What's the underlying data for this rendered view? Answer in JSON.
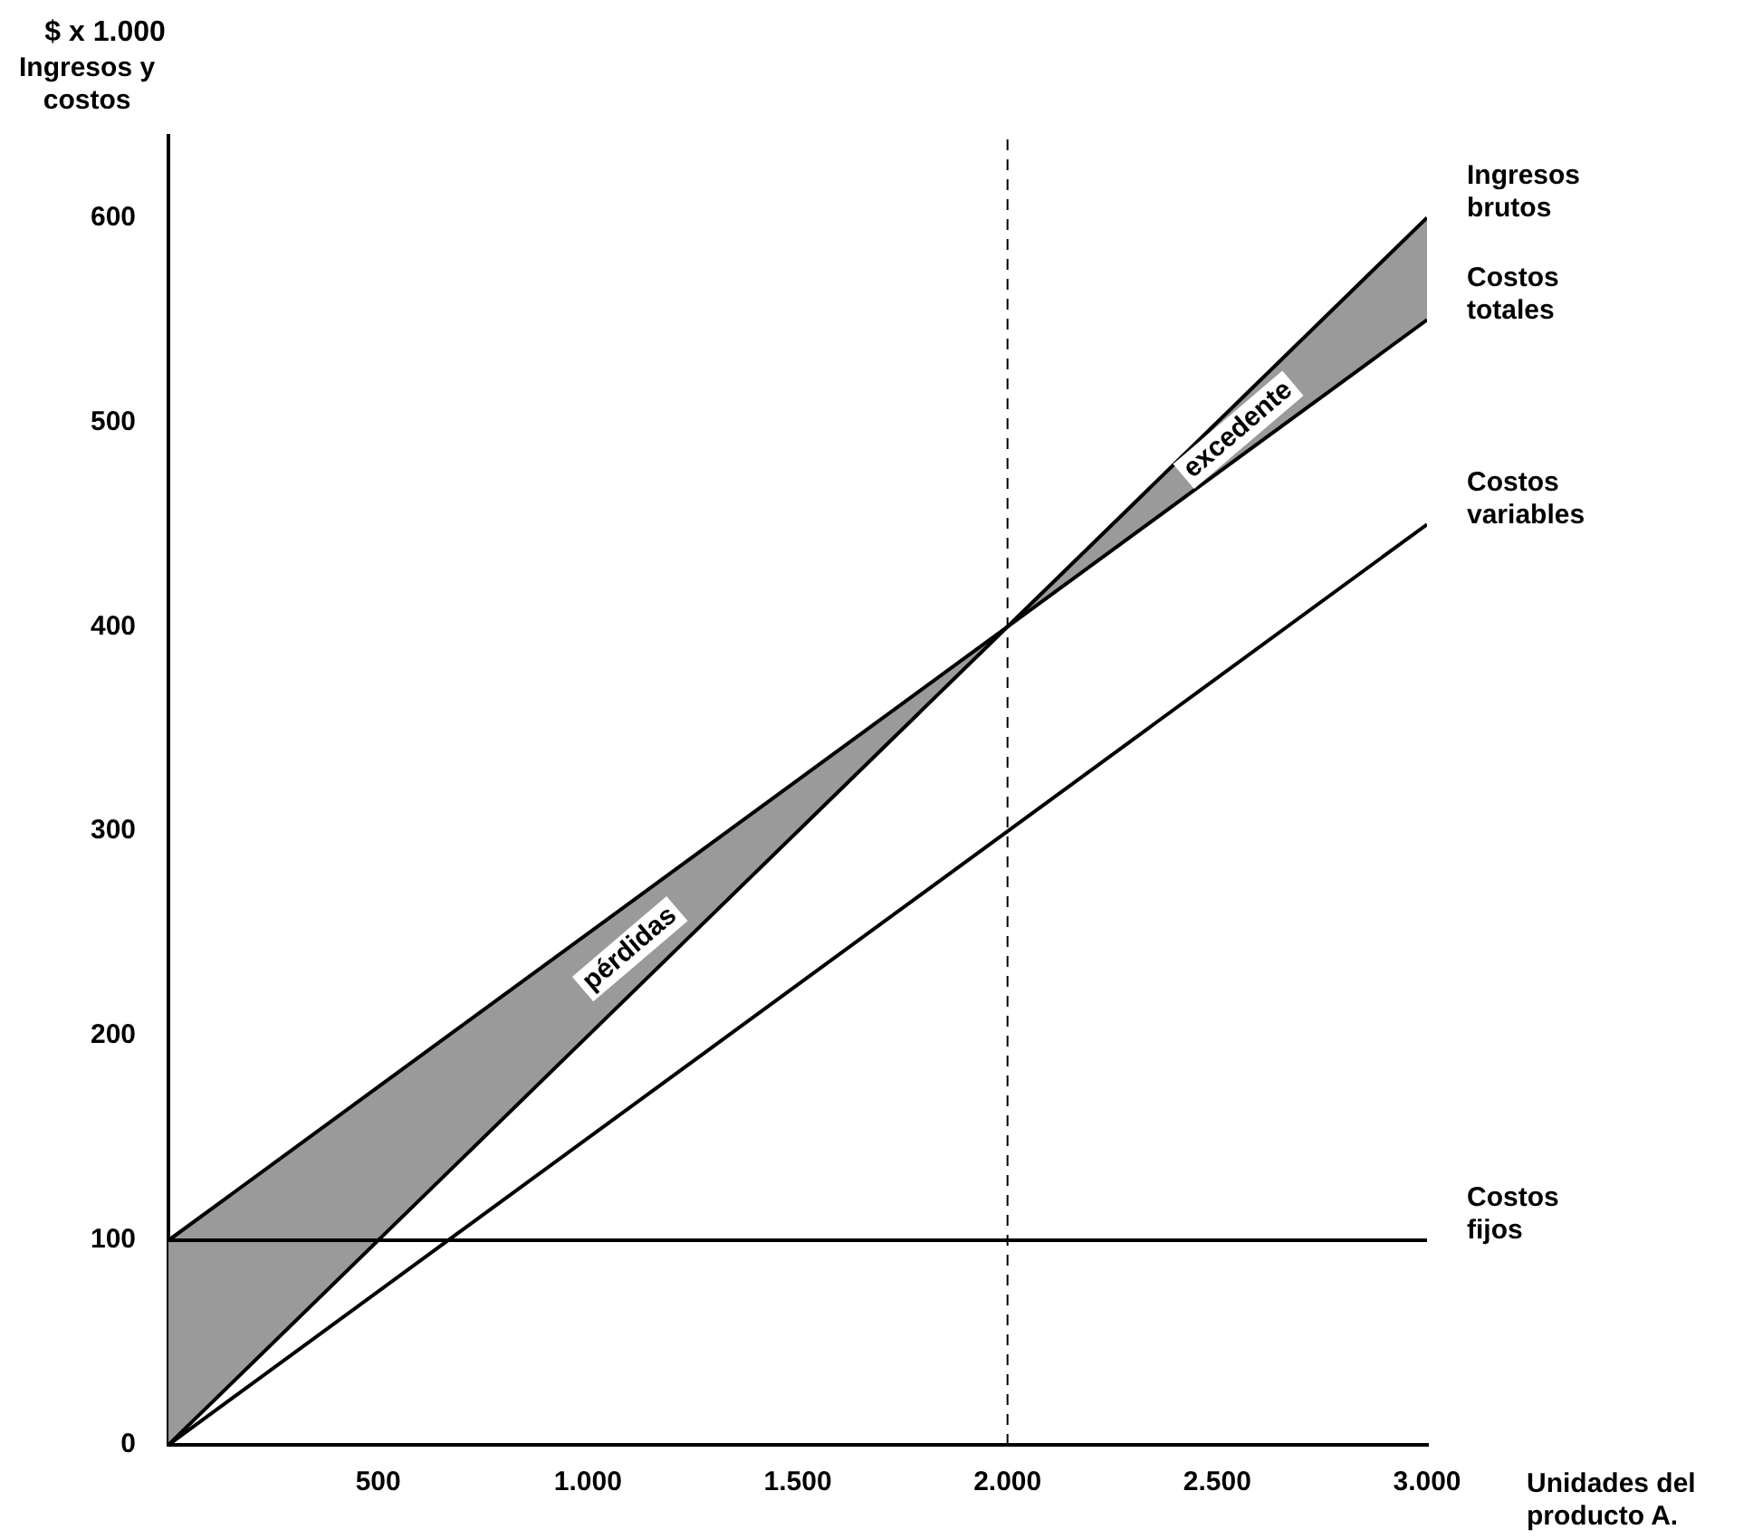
{
  "chart_data": {
    "type": "line",
    "xlabel": "Unidades del producto A.",
    "ylabel": "Ingresos y costos",
    "annotations": [
      "$ x 1.000",
      "pérdidas",
      "excedente"
    ],
    "xlim": [
      0,
      3000
    ],
    "ylim": [
      0,
      640
    ],
    "xticks": [
      {
        "value": 500,
        "label": "500"
      },
      {
        "value": 1000,
        "label": "1.000"
      },
      {
        "value": 1500,
        "label": "1.500"
      },
      {
        "value": 2000,
        "label": "2.000"
      },
      {
        "value": 2500,
        "label": "2.500"
      },
      {
        "value": 3000,
        "label": "3.000"
      }
    ],
    "yticks": [
      0,
      100,
      200,
      300,
      400,
      500,
      600
    ],
    "grid": false,
    "legend": false,
    "marker": "none",
    "line_style": "solid",
    "series": [
      {
        "name": "Ingresos brutos",
        "type": "line",
        "color": "#000000",
        "x": [
          0,
          2000,
          3000
        ],
        "values": [
          0,
          400,
          600
        ],
        "lower": [
          0,
          400,
          550
        ],
        "upper": [
          100,
          400,
          600
        ]
      },
      {
        "name": "Costos totales",
        "type": "line",
        "color": "#000000",
        "x": [
          0,
          3000
        ],
        "values": [
          100,
          550
        ]
      },
      {
        "name": "Costos variables",
        "type": "line",
        "color": "#000000",
        "x": [
          0,
          3000
        ],
        "values": [
          0,
          450
        ]
      },
      {
        "name": "Costos fijos",
        "type": "line",
        "color": "#000000",
        "x": [
          0,
          3000
        ],
        "values": [
          100,
          100
        ]
      }
    ],
    "ref_lines": [
      {
        "axis": "x",
        "value": 2000,
        "line_style": "dashed",
        "color": "#000000"
      }
    ]
  }
}
